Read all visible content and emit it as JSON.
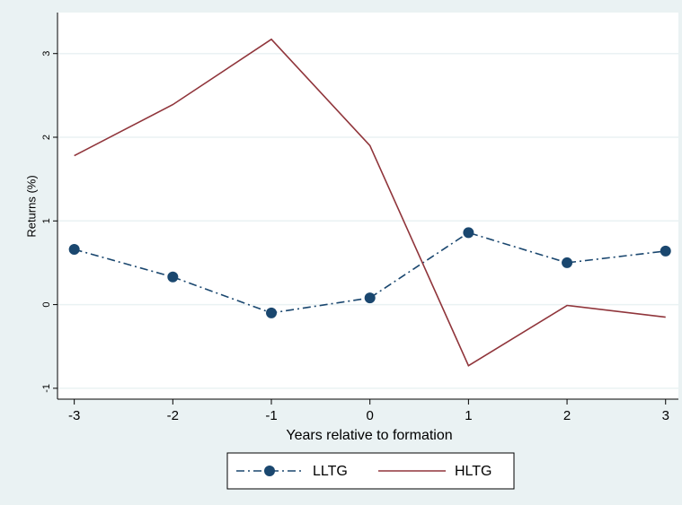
{
  "chart_data": {
    "type": "line",
    "x": [
      -3,
      -2,
      -1,
      0,
      1,
      2,
      3
    ],
    "series": [
      {
        "name": "LLTG",
        "color": "#1a476f",
        "values": [
          0.66,
          0.33,
          -0.1,
          0.08,
          0.86,
          0.5,
          0.64
        ],
        "marker": "circle",
        "dash": "dash-dot"
      },
      {
        "name": "HLTG",
        "color": "#90353b",
        "values": [
          1.78,
          2.39,
          3.17,
          1.9,
          -0.73,
          -0.01,
          -0.15
        ],
        "marker": "none",
        "dash": "solid"
      }
    ],
    "xlim": [
      -3.17,
      3.13
    ],
    "ylim": [
      -1.13,
      3.49
    ],
    "xticks": [
      -3,
      -2,
      -1,
      0,
      1,
      2,
      3
    ],
    "yticks": [
      -1,
      0,
      1,
      2,
      3
    ],
    "x_label": "Years relative to formation",
    "y_label": "Returns (%)",
    "grid": true,
    "legend": "bottom"
  }
}
